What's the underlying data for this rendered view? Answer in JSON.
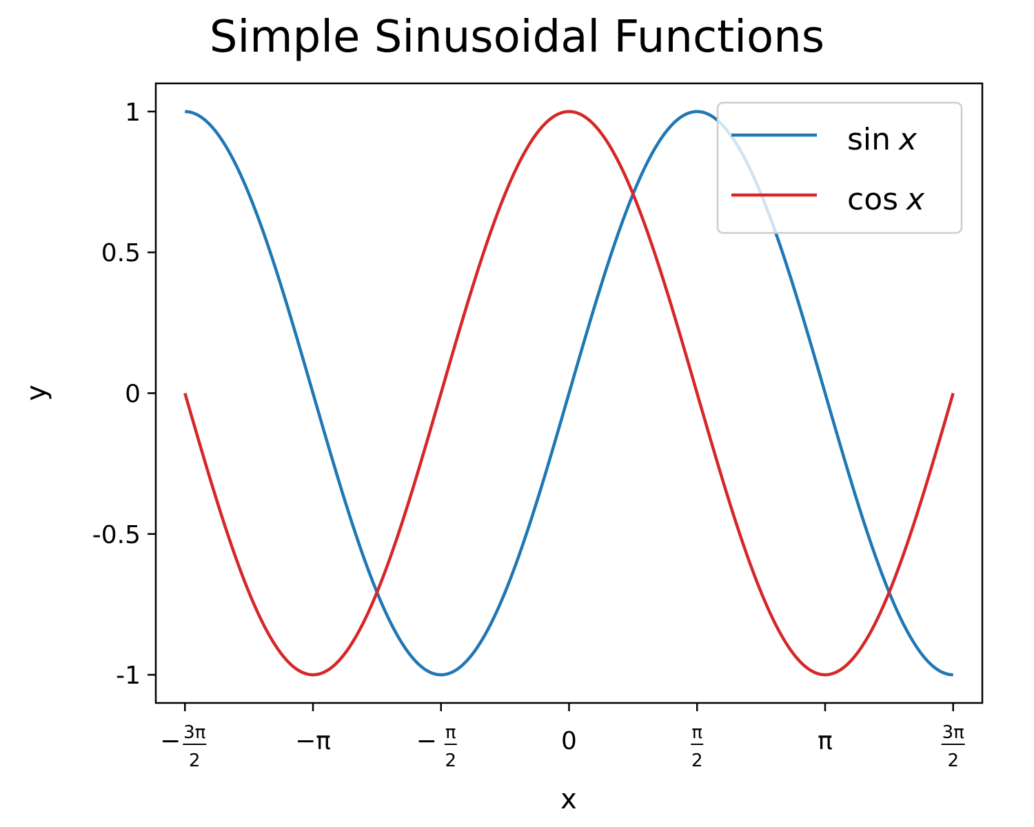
{
  "chart_data": {
    "type": "line",
    "title": "Simple Sinusoidal Functions",
    "xlabel": "x",
    "ylabel": "y",
    "xlim": [
      -5.07,
      5.07
    ],
    "ylim": [
      -1.1,
      1.1
    ],
    "grid": false,
    "legend_position": "top-right",
    "x_ticks": [
      {
        "value": -4.71238898,
        "sign": "−",
        "num": "3π",
        "den": "2"
      },
      {
        "value": -3.14159265,
        "text": "−π"
      },
      {
        "value": -1.57079633,
        "sign": "−",
        "num": "π",
        "den": "2"
      },
      {
        "value": 0,
        "text": "0"
      },
      {
        "value": 1.57079633,
        "num": "π",
        "den": "2"
      },
      {
        "value": 3.14159265,
        "text": "π"
      },
      {
        "value": 4.71238898,
        "num": "3π",
        "den": "2"
      }
    ],
    "y_ticks": [
      {
        "value": 1,
        "text": "1"
      },
      {
        "value": 0.5,
        "text": "0.5"
      },
      {
        "value": 0,
        "text": "0"
      },
      {
        "value": -0.5,
        "text": "-0.5"
      },
      {
        "value": -1,
        "text": "-1"
      }
    ],
    "x_range": [
      -4.71238898,
      4.71238898
    ],
    "series": [
      {
        "name": "sin x",
        "func_label": "sin",
        "var_label": "x",
        "color": "#1f77b4",
        "x": [
          -4.712,
          -4.32,
          -3.927,
          -3.534,
          -3.142,
          -2.749,
          -2.356,
          -1.963,
          -1.571,
          -1.178,
          -0.785,
          -0.393,
          0,
          0.393,
          0.785,
          1.178,
          1.571,
          1.963,
          2.356,
          2.749,
          3.142,
          3.534,
          3.927,
          4.32,
          4.712
        ],
        "y": [
          1.0,
          0.924,
          0.707,
          0.383,
          0.0,
          -0.383,
          -0.707,
          -0.924,
          -1.0,
          -0.924,
          -0.707,
          -0.383,
          0.0,
          0.383,
          0.707,
          0.924,
          1.0,
          0.924,
          0.707,
          0.383,
          0.0,
          -0.383,
          -0.707,
          -0.924,
          -1.0
        ]
      },
      {
        "name": "cos x",
        "func_label": "cos",
        "var_label": "x",
        "color": "#d62728",
        "x": [
          -4.712,
          -4.32,
          -3.927,
          -3.534,
          -3.142,
          -2.749,
          -2.356,
          -1.963,
          -1.571,
          -1.178,
          -0.785,
          -0.393,
          0,
          0.393,
          0.785,
          1.178,
          1.571,
          1.963,
          2.356,
          2.749,
          3.142,
          3.534,
          3.927,
          4.32,
          4.712
        ],
        "y": [
          0.0,
          -0.383,
          -0.707,
          -0.924,
          -1.0,
          -0.924,
          -0.707,
          -0.383,
          0.0,
          0.383,
          0.707,
          0.924,
          1.0,
          0.924,
          0.707,
          0.383,
          0.0,
          -0.383,
          -0.707,
          -0.924,
          -1.0,
          -0.924,
          -0.707,
          -0.383,
          0.0
        ]
      }
    ]
  }
}
